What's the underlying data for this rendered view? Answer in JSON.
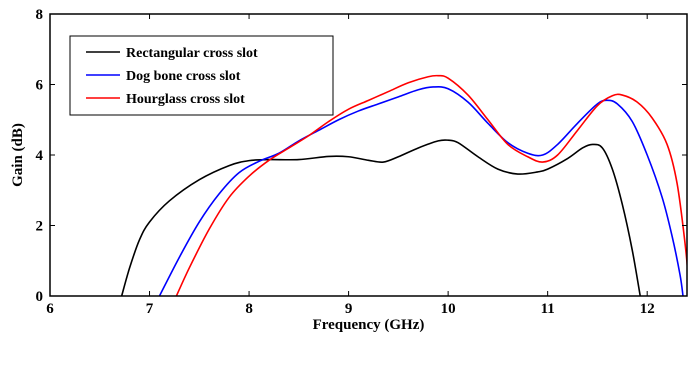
{
  "chart_data": {
    "type": "line",
    "title": "",
    "xlabel": "Frequency (GHz)",
    "ylabel": "Gain (dB)",
    "xlim": [
      6,
      12.4
    ],
    "ylim": [
      0,
      8
    ],
    "xticks": [
      6,
      7,
      8,
      9,
      10,
      11,
      12
    ],
    "yticks": [
      0,
      2,
      4,
      6,
      8
    ],
    "grid": false,
    "legend": "top-left",
    "series": [
      {
        "name": "Rectangular cross slot",
        "color": "#000000",
        "points": [
          [
            6.72,
            0
          ],
          [
            6.8,
            0.8
          ],
          [
            6.9,
            1.6
          ],
          [
            7.0,
            2.1
          ],
          [
            7.2,
            2.7
          ],
          [
            7.5,
            3.3
          ],
          [
            7.8,
            3.7
          ],
          [
            8.0,
            3.84
          ],
          [
            8.2,
            3.87
          ],
          [
            8.5,
            3.87
          ],
          [
            8.8,
            3.96
          ],
          [
            9.0,
            3.95
          ],
          [
            9.2,
            3.85
          ],
          [
            9.35,
            3.8
          ],
          [
            9.5,
            3.95
          ],
          [
            9.7,
            4.2
          ],
          [
            9.9,
            4.4
          ],
          [
            10.0,
            4.42
          ],
          [
            10.1,
            4.35
          ],
          [
            10.3,
            3.95
          ],
          [
            10.5,
            3.6
          ],
          [
            10.7,
            3.46
          ],
          [
            10.9,
            3.52
          ],
          [
            11.0,
            3.6
          ],
          [
            11.2,
            3.9
          ],
          [
            11.35,
            4.2
          ],
          [
            11.45,
            4.3
          ],
          [
            11.55,
            4.2
          ],
          [
            11.65,
            3.6
          ],
          [
            11.75,
            2.6
          ],
          [
            11.85,
            1.3
          ],
          [
            11.93,
            0
          ]
        ]
      },
      {
        "name": "Dog bone cross slot",
        "color": "#0000ff",
        "points": [
          [
            7.1,
            0
          ],
          [
            7.3,
            1.1
          ],
          [
            7.5,
            2.1
          ],
          [
            7.7,
            2.9
          ],
          [
            7.9,
            3.5
          ],
          [
            8.1,
            3.82
          ],
          [
            8.3,
            4.05
          ],
          [
            8.5,
            4.4
          ],
          [
            8.7,
            4.7
          ],
          [
            8.9,
            5.0
          ],
          [
            9.1,
            5.25
          ],
          [
            9.3,
            5.45
          ],
          [
            9.5,
            5.65
          ],
          [
            9.7,
            5.85
          ],
          [
            9.85,
            5.93
          ],
          [
            10.0,
            5.88
          ],
          [
            10.2,
            5.5
          ],
          [
            10.4,
            4.9
          ],
          [
            10.6,
            4.35
          ],
          [
            10.8,
            4.05
          ],
          [
            10.95,
            4.0
          ],
          [
            11.1,
            4.3
          ],
          [
            11.3,
            4.9
          ],
          [
            11.5,
            5.45
          ],
          [
            11.6,
            5.55
          ],
          [
            11.7,
            5.45
          ],
          [
            11.85,
            4.95
          ],
          [
            12.0,
            4.0
          ],
          [
            12.15,
            2.8
          ],
          [
            12.25,
            1.7
          ],
          [
            12.33,
            0.6
          ],
          [
            12.36,
            0
          ]
        ]
      },
      {
        "name": "Hourglass cross slot",
        "color": "#ff0000",
        "points": [
          [
            7.27,
            0
          ],
          [
            7.4,
            0.8
          ],
          [
            7.6,
            1.9
          ],
          [
            7.8,
            2.8
          ],
          [
            8.0,
            3.4
          ],
          [
            8.2,
            3.85
          ],
          [
            8.4,
            4.2
          ],
          [
            8.6,
            4.55
          ],
          [
            8.8,
            4.95
          ],
          [
            9.0,
            5.3
          ],
          [
            9.2,
            5.55
          ],
          [
            9.4,
            5.8
          ],
          [
            9.6,
            6.05
          ],
          [
            9.8,
            6.22
          ],
          [
            9.9,
            6.25
          ],
          [
            10.0,
            6.18
          ],
          [
            10.2,
            5.7
          ],
          [
            10.4,
            5.0
          ],
          [
            10.6,
            4.3
          ],
          [
            10.8,
            3.95
          ],
          [
            10.95,
            3.8
          ],
          [
            11.1,
            4.0
          ],
          [
            11.3,
            4.7
          ],
          [
            11.5,
            5.4
          ],
          [
            11.65,
            5.68
          ],
          [
            11.75,
            5.7
          ],
          [
            11.9,
            5.5
          ],
          [
            12.05,
            5.05
          ],
          [
            12.2,
            4.3
          ],
          [
            12.3,
            3.2
          ],
          [
            12.38,
            1.5
          ],
          [
            12.42,
            0.3
          ]
        ]
      }
    ]
  }
}
